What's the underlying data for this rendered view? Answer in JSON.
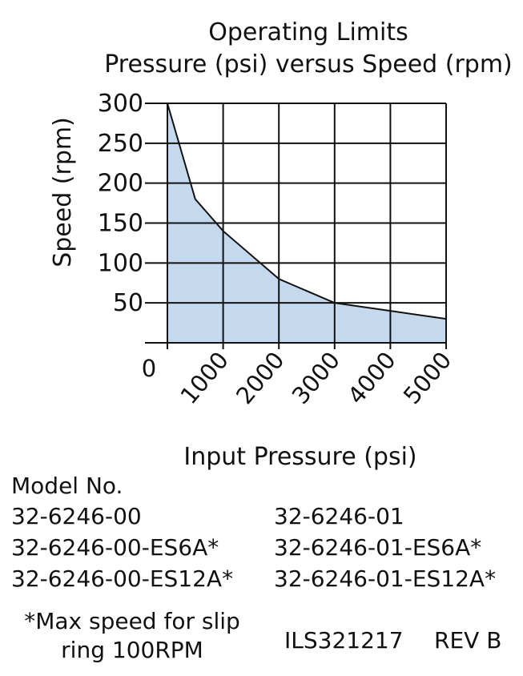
{
  "chart_data": {
    "type": "area",
    "title": "Operating Limits",
    "subtitle": "Pressure (psi) versus Speed (rpm)",
    "xlabel": "Input Pressure (psi)",
    "ylabel": "Speed (rpm)",
    "xlim": [
      0,
      5000
    ],
    "ylim": [
      0,
      300
    ],
    "x_ticks": [
      0,
      1000,
      2000,
      3000,
      4000,
      5000
    ],
    "x_tick_labels": [
      "0",
      "1000",
      "2000",
      "3000",
      "4000",
      "5000"
    ],
    "y_ticks": [
      50,
      100,
      150,
      200,
      250,
      300
    ],
    "y_tick_labels": [
      "50",
      "100",
      "150",
      "200",
      "250",
      "300"
    ],
    "grid": true,
    "fill_color": "#c5d9ee",
    "line_color": "#111111",
    "series": [
      {
        "x": [
          0,
          500,
          1000,
          2000,
          3000,
          4000,
          5000
        ],
        "y": [
          300,
          180,
          140,
          80,
          50,
          40,
          30
        ]
      }
    ]
  },
  "models": {
    "heading": "Model No.",
    "left": [
      "32-6246-00",
      "32-6246-00-ES6A*",
      "32-6246-00-ES12A*"
    ],
    "right": [
      "32-6246-01",
      "32-6246-01-ES6A*",
      "32-6246-01-ES12A*"
    ]
  },
  "footnote": "*Max speed for slip ring 100RPM",
  "doc_id": "ILS321217",
  "revision": "REV B"
}
